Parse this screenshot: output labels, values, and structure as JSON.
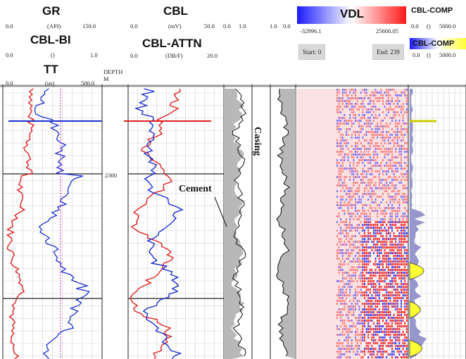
{
  "tracks": {
    "gr": {
      "name": "GR",
      "unit": "(API)",
      "min": "0.0",
      "max": "150.0",
      "color": "#e02020"
    },
    "cblbi": {
      "name": "CBL-BI",
      "unit": "()",
      "min": "0.0",
      "max": "1.0",
      "color": "#1a2fd0"
    },
    "tt": {
      "name": "TT",
      "unit": "(us)",
      "min": "0.0",
      "max": "500.0",
      "color": "#d020d0"
    },
    "depth": {
      "label": "DEPTH",
      "unit": "M",
      "marker": "2300"
    },
    "cbl": {
      "name": "CBL",
      "unit": "(mV)",
      "min": "0.0",
      "max": "50.0",
      "color": "#e02020"
    },
    "cblattn": {
      "name": "CBL-ATTN",
      "unit": "(DB/F)",
      "min": "0.0",
      "max": "20.0",
      "color": "#1a2fd0"
    },
    "narrow1": {
      "min": "0.0",
      "max": "1.0"
    },
    "narrow2": {
      "min": "1.0",
      "max": "0.0"
    },
    "vdl": {
      "name": "VDL",
      "min": "-32996.1",
      "max": "25600.05",
      "start_label": "Start: 0",
      "end_label": "End: 239"
    },
    "comp1": {
      "name": "CBL-COMP",
      "unit": "()",
      "min": "0.0",
      "max": "5000.0"
    },
    "comp2": {
      "name": "CBL-COMP",
      "unit": "()",
      "min": "0.0",
      "max": "5000.0"
    }
  },
  "annotations": {
    "cement": "Cement",
    "casing": "Casing"
  }
}
